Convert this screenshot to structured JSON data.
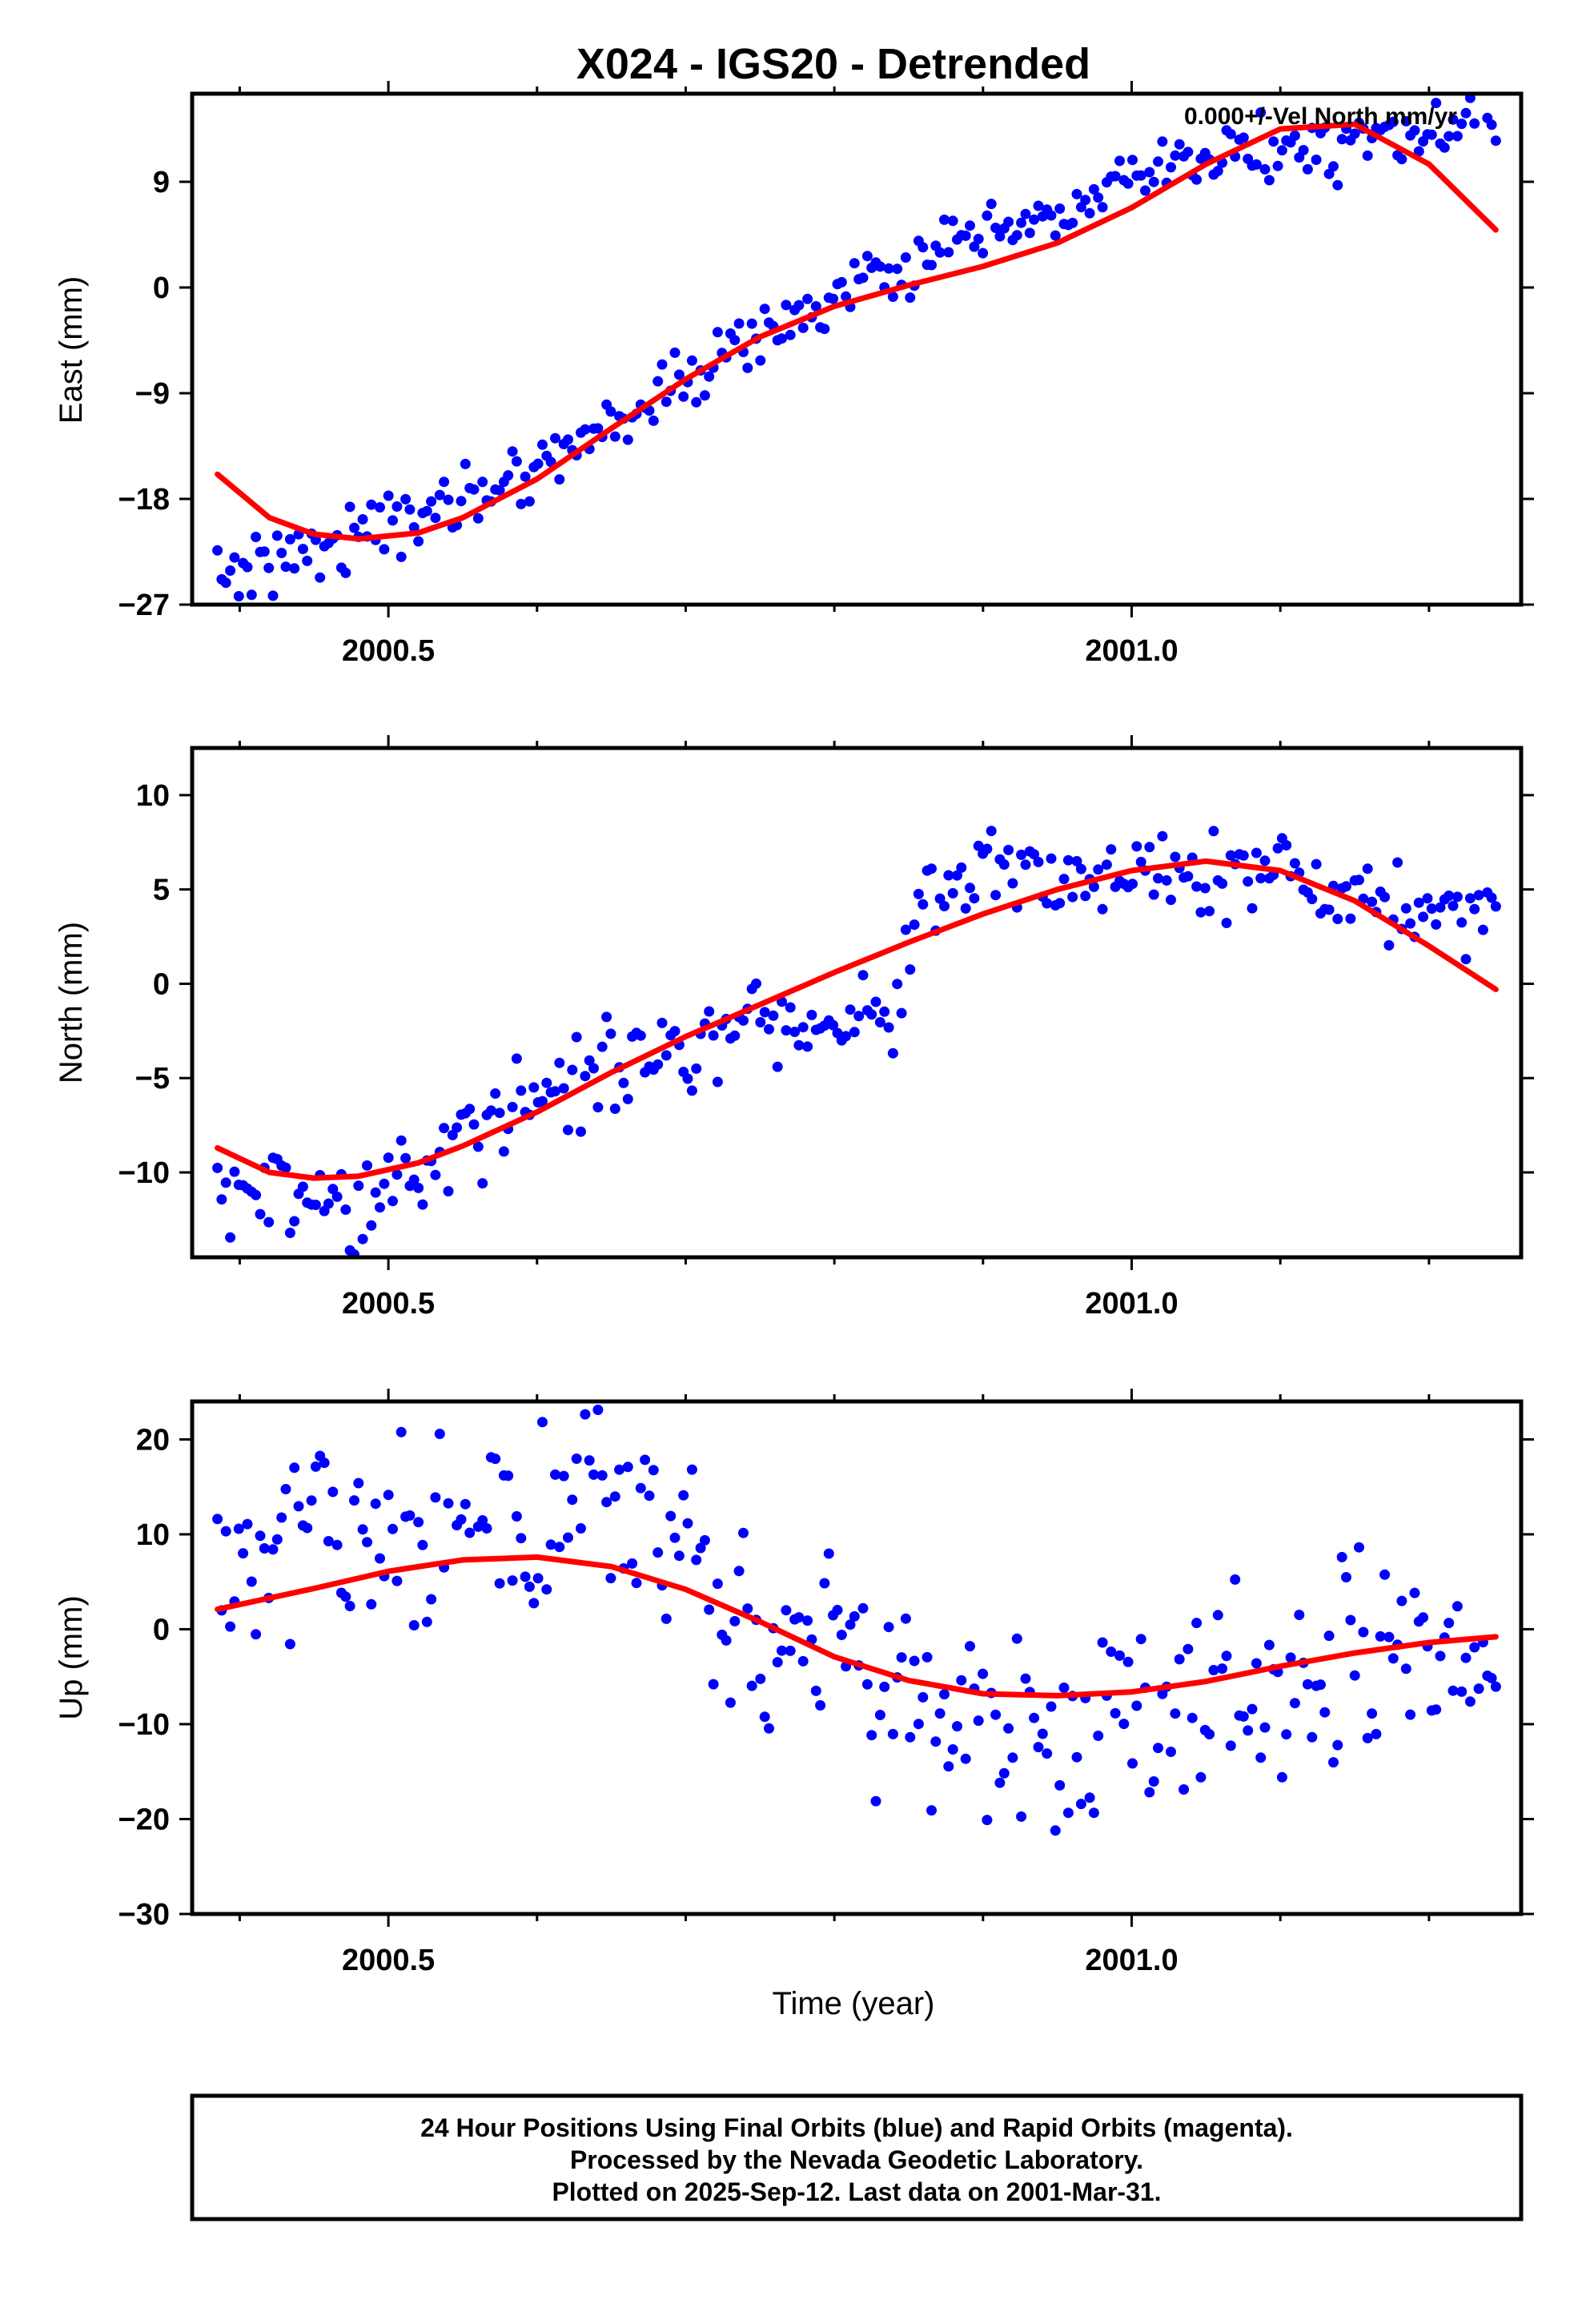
{
  "chart_data": [
    {
      "type": "scatter",
      "title": "X024 - IGS20 - Detrended",
      "ylabel": "East (mm)",
      "xlabel": "",
      "annotation": "0.000+/-Vel North mm/yr",
      "xlim": [
        2000.368,
        2001.262
      ],
      "ylim": [
        -27,
        16.5
      ],
      "yticks": [
        -27,
        -18,
        -9,
        0,
        9
      ],
      "yticklabels": [
        "−27",
        "−18",
        "−9",
        "0",
        "9"
      ],
      "xticks": [
        2000.5,
        2001.0
      ],
      "xticklabels": [
        "2000.5",
        "2001.0"
      ],
      "xminor": [
        2000.4,
        2000.6,
        2000.7,
        2000.8,
        2000.9,
        2001.1,
        2001.2
      ],
      "grid": false,
      "series": [
        {
          "kind": "points",
          "color": "#0000ff",
          "x_start": 2000.385,
          "x_end": 2001.245,
          "count": 300,
          "trend": [
            [
              2000.385,
              -24.5
            ],
            [
              2000.45,
              -22
            ],
            [
              2000.52,
              -19.5
            ],
            [
              2000.6,
              -15
            ],
            [
              2000.7,
              -8
            ],
            [
              2000.75,
              -4
            ],
            [
              2000.8,
              -1
            ],
            [
              2000.85,
              2
            ],
            [
              2000.9,
              4
            ],
            [
              2000.95,
              6
            ],
            [
              2001.0,
              9
            ],
            [
              2001.05,
              11
            ],
            [
              2001.1,
              12
            ],
            [
              2001.15,
              12
            ],
            [
              2001.2,
              13
            ],
            [
              2001.245,
              14.5
            ]
          ],
          "noise": 1.3
        },
        {
          "kind": "line",
          "color": "#ff0000",
          "x": [
            2000.385,
            2000.42,
            2000.45,
            2000.48,
            2000.52,
            2000.55,
            2000.6,
            2000.65,
            2000.7,
            2000.75,
            2000.8,
            2000.85,
            2000.9,
            2000.95,
            2001.0,
            2001.05,
            2001.1,
            2001.15,
            2001.2,
            2001.245
          ],
          "y": [
            -15.9,
            -19.6,
            -21.0,
            -21.4,
            -20.9,
            -19.6,
            -16.3,
            -12.0,
            -7.8,
            -4.2,
            -1.6,
            0.2,
            1.8,
            3.8,
            6.8,
            10.5,
            13.5,
            13.9,
            10.5,
            4.9
          ]
        }
      ]
    },
    {
      "type": "scatter",
      "title": "",
      "ylabel": "North (mm)",
      "xlabel": "",
      "xlim": [
        2000.368,
        2001.262
      ],
      "ylim": [
        -14.5,
        12.5
      ],
      "yticks": [
        -10,
        -5,
        0,
        5,
        10
      ],
      "yticklabels": [
        "−10",
        "−5",
        "0",
        "5",
        "10"
      ],
      "xticks": [
        2000.5,
        2001.0
      ],
      "xticklabels": [
        "2000.5",
        "2001.0"
      ],
      "xminor": [
        2000.4,
        2000.6,
        2000.7,
        2000.8,
        2000.9,
        2001.1,
        2001.2
      ],
      "grid": false,
      "series": [
        {
          "kind": "points",
          "color": "#0000ff",
          "x_start": 2000.385,
          "x_end": 2001.245,
          "count": 300,
          "trend": [
            [
              2000.385,
              -10.5
            ],
            [
              2000.45,
              -12
            ],
            [
              2000.5,
              -11.5
            ],
            [
              2000.55,
              -8
            ],
            [
              2000.6,
              -6
            ],
            [
              2000.65,
              -4
            ],
            [
              2000.7,
              -3
            ],
            [
              2000.75,
              -2
            ],
            [
              2000.8,
              -2
            ],
            [
              2000.84,
              -1
            ],
            [
              2000.86,
              5
            ],
            [
              2000.9,
              6
            ],
            [
              2000.95,
              6
            ],
            [
              2001.0,
              6
            ],
            [
              2001.05,
              6
            ],
            [
              2001.1,
              6
            ],
            [
              2001.15,
              4
            ],
            [
              2001.2,
              4
            ],
            [
              2001.245,
              3.5
            ]
          ],
          "noise": 1.2
        },
        {
          "kind": "line",
          "color": "#ff0000",
          "x": [
            2000.385,
            2000.42,
            2000.45,
            2000.48,
            2000.52,
            2000.55,
            2000.6,
            2000.65,
            2000.7,
            2000.75,
            2000.8,
            2000.85,
            2000.9,
            2000.95,
            2001.0,
            2001.05,
            2001.1,
            2001.15,
            2001.2,
            2001.245
          ],
          "y": [
            -8.7,
            -10.0,
            -10.3,
            -10.2,
            -9.5,
            -8.6,
            -6.8,
            -4.7,
            -2.8,
            -1.1,
            0.6,
            2.2,
            3.7,
            5.0,
            6.0,
            6.5,
            6.0,
            4.4,
            2.0,
            -0.3
          ]
        }
      ]
    },
    {
      "type": "scatter",
      "title": "",
      "ylabel": "Up (mm)",
      "xlabel": "Time (year)",
      "xlim": [
        2000.368,
        2001.262
      ],
      "ylim": [
        -30,
        24
      ],
      "yticks": [
        -30,
        -20,
        -10,
        0,
        10,
        20
      ],
      "yticklabels": [
        "−30",
        "−20",
        "−10",
        "0",
        "10",
        "20"
      ],
      "xticks": [
        2000.5,
        2001.0
      ],
      "xticklabels": [
        "2000.5",
        "2001.0"
      ],
      "xminor": [
        2000.4,
        2000.6,
        2000.7,
        2000.8,
        2000.9,
        2001.1,
        2001.2
      ],
      "grid": false,
      "series": [
        {
          "kind": "points",
          "color": "#0000ff",
          "x_start": 2000.385,
          "x_end": 2001.245,
          "count": 300,
          "trend": [
            [
              2000.385,
              5
            ],
            [
              2000.45,
              9
            ],
            [
              2000.55,
              11
            ],
            [
              2000.6,
              11
            ],
            [
              2000.65,
              13
            ],
            [
              2000.7,
              6
            ],
            [
              2000.75,
              1
            ],
            [
              2000.8,
              -3
            ],
            [
              2000.85,
              -8
            ],
            [
              2000.9,
              -10
            ],
            [
              2000.95,
              -12
            ],
            [
              2001.0,
              -10
            ],
            [
              2001.05,
              -8
            ],
            [
              2001.1,
              -4
            ],
            [
              2001.15,
              -2
            ],
            [
              2001.2,
              -5
            ],
            [
              2001.245,
              0
            ]
          ],
          "noise": 5.5
        },
        {
          "kind": "line",
          "color": "#ff0000",
          "x": [
            2000.385,
            2000.45,
            2000.5,
            2000.55,
            2000.6,
            2000.65,
            2000.7,
            2000.75,
            2000.8,
            2000.85,
            2000.9,
            2000.95,
            2001.0,
            2001.05,
            2001.1,
            2001.15,
            2001.2,
            2001.245
          ],
          "y": [
            2.1,
            4.3,
            6.1,
            7.3,
            7.6,
            6.6,
            4.2,
            0.8,
            -2.9,
            -5.4,
            -6.8,
            -7.0,
            -6.6,
            -5.5,
            -3.9,
            -2.5,
            -1.4,
            -0.8
          ]
        }
      ]
    }
  ],
  "caption": {
    "line1": "24 Hour Positions Using Final Orbits (blue) and Rapid Orbits (magenta).",
    "line2": "Processed by the Nevada Geodetic Laboratory.",
    "line3": "Plotted on 2025-Sep-12. Last data on 2001-Mar-31."
  }
}
